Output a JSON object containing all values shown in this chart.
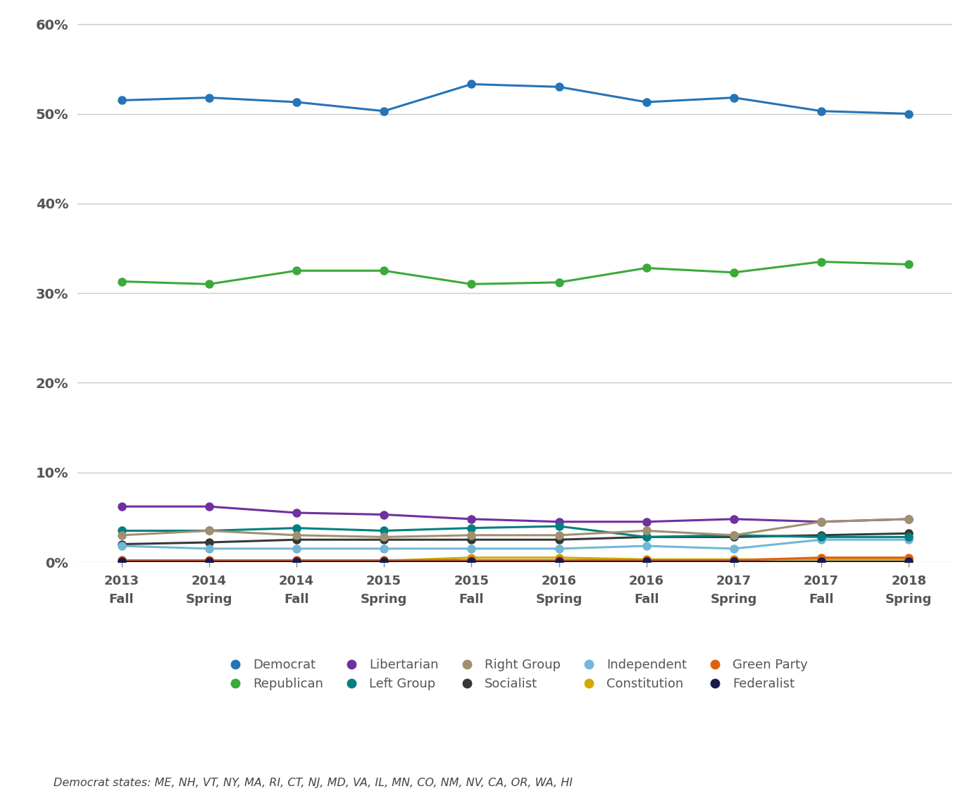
{
  "x_labels": [
    [
      "2013",
      "Fall"
    ],
    [
      "2014",
      "Spring"
    ],
    [
      "2014",
      "Fall"
    ],
    [
      "2015",
      "Spring"
    ],
    [
      "2015",
      "Fall"
    ],
    [
      "2016",
      "Spring"
    ],
    [
      "2016",
      "Fall"
    ],
    [
      "2017",
      "Spring"
    ],
    [
      "2017",
      "Fall"
    ],
    [
      "2018",
      "Spring"
    ]
  ],
  "series": {
    "Democrat": {
      "values": [
        51.5,
        51.8,
        51.3,
        50.3,
        53.3,
        53.0,
        51.3,
        51.8,
        50.3,
        50.0
      ],
      "color": "#2474b8",
      "zorder": 5
    },
    "Republican": {
      "values": [
        31.3,
        31.0,
        32.5,
        32.5,
        31.0,
        31.2,
        32.8,
        32.3,
        33.5,
        33.2
      ],
      "color": "#3aaa3a",
      "zorder": 5
    },
    "Libertarian": {
      "values": [
        6.2,
        6.2,
        5.5,
        5.3,
        4.8,
        4.5,
        4.5,
        4.8,
        4.5,
        4.8
      ],
      "color": "#7030a0",
      "zorder": 4
    },
    "Left Group": {
      "values": [
        3.5,
        3.5,
        3.8,
        3.5,
        3.8,
        4.0,
        2.8,
        3.0,
        2.8,
        2.8
      ],
      "color": "#008080",
      "zorder": 4
    },
    "Right Group": {
      "values": [
        3.0,
        3.5,
        3.0,
        2.8,
        3.0,
        3.0,
        3.5,
        3.0,
        4.5,
        4.8
      ],
      "color": "#a09070",
      "zorder": 4
    },
    "Socialist": {
      "values": [
        2.0,
        2.2,
        2.5,
        2.5,
        2.5,
        2.5,
        2.8,
        2.8,
        3.0,
        3.2
      ],
      "color": "#383838",
      "zorder": 3
    },
    "Independent": {
      "values": [
        1.8,
        1.5,
        1.5,
        1.5,
        1.5,
        1.5,
        1.8,
        1.5,
        2.5,
        2.5
      ],
      "color": "#70b8d8",
      "zorder": 3
    },
    "Constitution": {
      "values": [
        0.1,
        0.1,
        0.1,
        0.15,
        0.5,
        0.5,
        0.3,
        0.3,
        0.3,
        0.3
      ],
      "color": "#d4a800",
      "zorder": 2
    },
    "Green Party": {
      "values": [
        0.2,
        0.2,
        0.2,
        0.2,
        0.2,
        0.2,
        0.2,
        0.2,
        0.5,
        0.5
      ],
      "color": "#e06010",
      "zorder": 2
    },
    "Federalist": {
      "values": [
        0.05,
        0.05,
        0.05,
        0.05,
        0.05,
        0.05,
        0.05,
        0.05,
        0.05,
        0.05
      ],
      "color": "#1a1a50",
      "zorder": 2
    }
  },
  "legend_order": [
    "Democrat",
    "Republican",
    "Libertarian",
    "Left Group",
    "Right Group",
    "Socialist",
    "Independent",
    "Constitution",
    "Green Party",
    "Federalist"
  ],
  "ylim": [
    0,
    60
  ],
  "yticks": [
    0,
    10,
    20,
    30,
    40,
    50,
    60
  ],
  "ytick_labels": [
    "0%",
    "10%",
    "20%",
    "30%",
    "40%",
    "50%",
    "60%"
  ],
  "grid_color": "#d0c8be",
  "bg_color": "#ffffff",
  "footnote": "Democrat states: ME, NH, VT, NY, MA, RI, CT, NJ, MD, VA, IL, MN, CO, NM, NV, CA, OR, WA, HI",
  "marker": "o",
  "marker_size": 8,
  "line_width": 2.2,
  "tick_color": "#888888",
  "label_color": "#555555"
}
